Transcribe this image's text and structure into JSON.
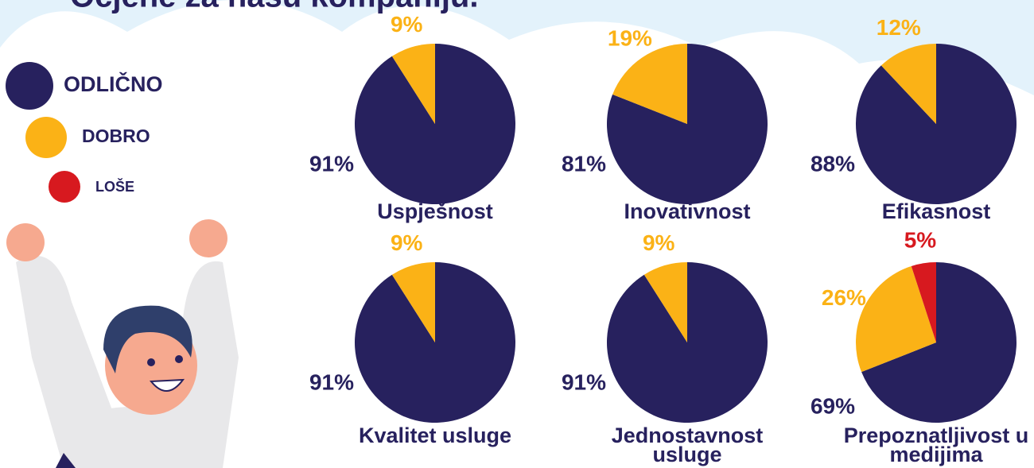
{
  "title": "Ocjene za našu kompaniju.",
  "legend": [
    {
      "name": "ODLIČNO",
      "color": "#27215e"
    },
    {
      "name": "DOBRO",
      "color": "#fbb216"
    },
    {
      "name": "LOŠE",
      "color": "#d7191f"
    }
  ],
  "chart_data": [
    {
      "type": "pie",
      "title": "Uspješnost",
      "values": [
        91,
        9
      ],
      "value_labels": [
        "91%",
        "9%"
      ]
    },
    {
      "type": "pie",
      "title": "Inovativnost",
      "values": [
        81,
        19
      ],
      "value_labels": [
        "81%",
        "19%"
      ]
    },
    {
      "type": "pie",
      "title": "Efikasnost",
      "values": [
        88,
        12
      ],
      "value_labels": [
        "88%",
        "12%"
      ]
    },
    {
      "type": "pie",
      "title": "Kvalitet usluge",
      "values": [
        91,
        9
      ],
      "value_labels": [
        "91%",
        "9%"
      ]
    },
    {
      "type": "pie",
      "title": "Jednostavnost usluge",
      "values": [
        91,
        9
      ],
      "value_labels": [
        "91%",
        "9%"
      ]
    },
    {
      "type": "pie",
      "title": "Prepoznatljivost u medijima",
      "values": [
        69,
        26,
        5
      ],
      "value_labels": [
        "69%",
        "26%",
        "5%"
      ]
    }
  ]
}
